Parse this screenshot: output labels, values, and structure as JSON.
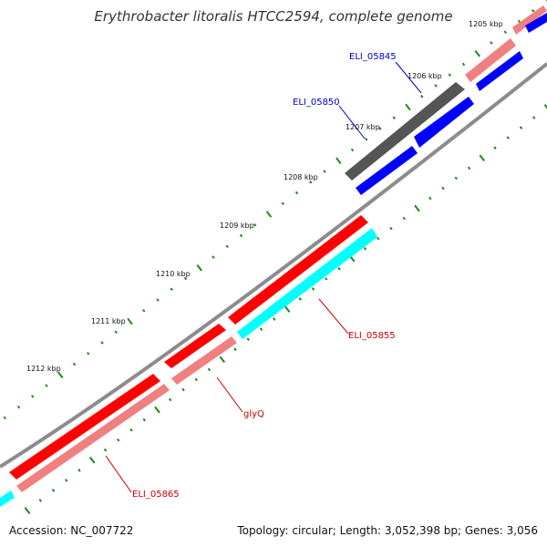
{
  "title": "Erythrobacter litoralis HTCC2594, complete genome",
  "footer": {
    "accession": "Accession: NC_007722",
    "summary": "Topology: circular; Length: 3,052,398 bp; Genes: 3,056"
  },
  "kbp_ticks": [
    "1205 kbp",
    "1206 kbp",
    "1207 kbp",
    "1208 kbp",
    "1209 kbp",
    "1210 kbp",
    "1211 kbp",
    "1212 kbp"
  ],
  "gene_labels": [
    {
      "name": "ELI_05845",
      "color": "#0000cc"
    },
    {
      "name": "ELI_05850",
      "color": "#0000cc"
    },
    {
      "name": "ELI_05855",
      "color": "#cc0000"
    },
    {
      "name": "glyQ",
      "color": "#cc0000"
    },
    {
      "name": "ELI_05865",
      "color": "#cc0000"
    }
  ],
  "colors": {
    "backbone": "#8c8c8c",
    "forward_cds": "#ff0000",
    "forward_rna": "#f08080",
    "reverse_cds": "#0000ff",
    "reverse_other": "#00ffff",
    "gray_feature": "#555555",
    "tick": "#1a8a1a"
  }
}
